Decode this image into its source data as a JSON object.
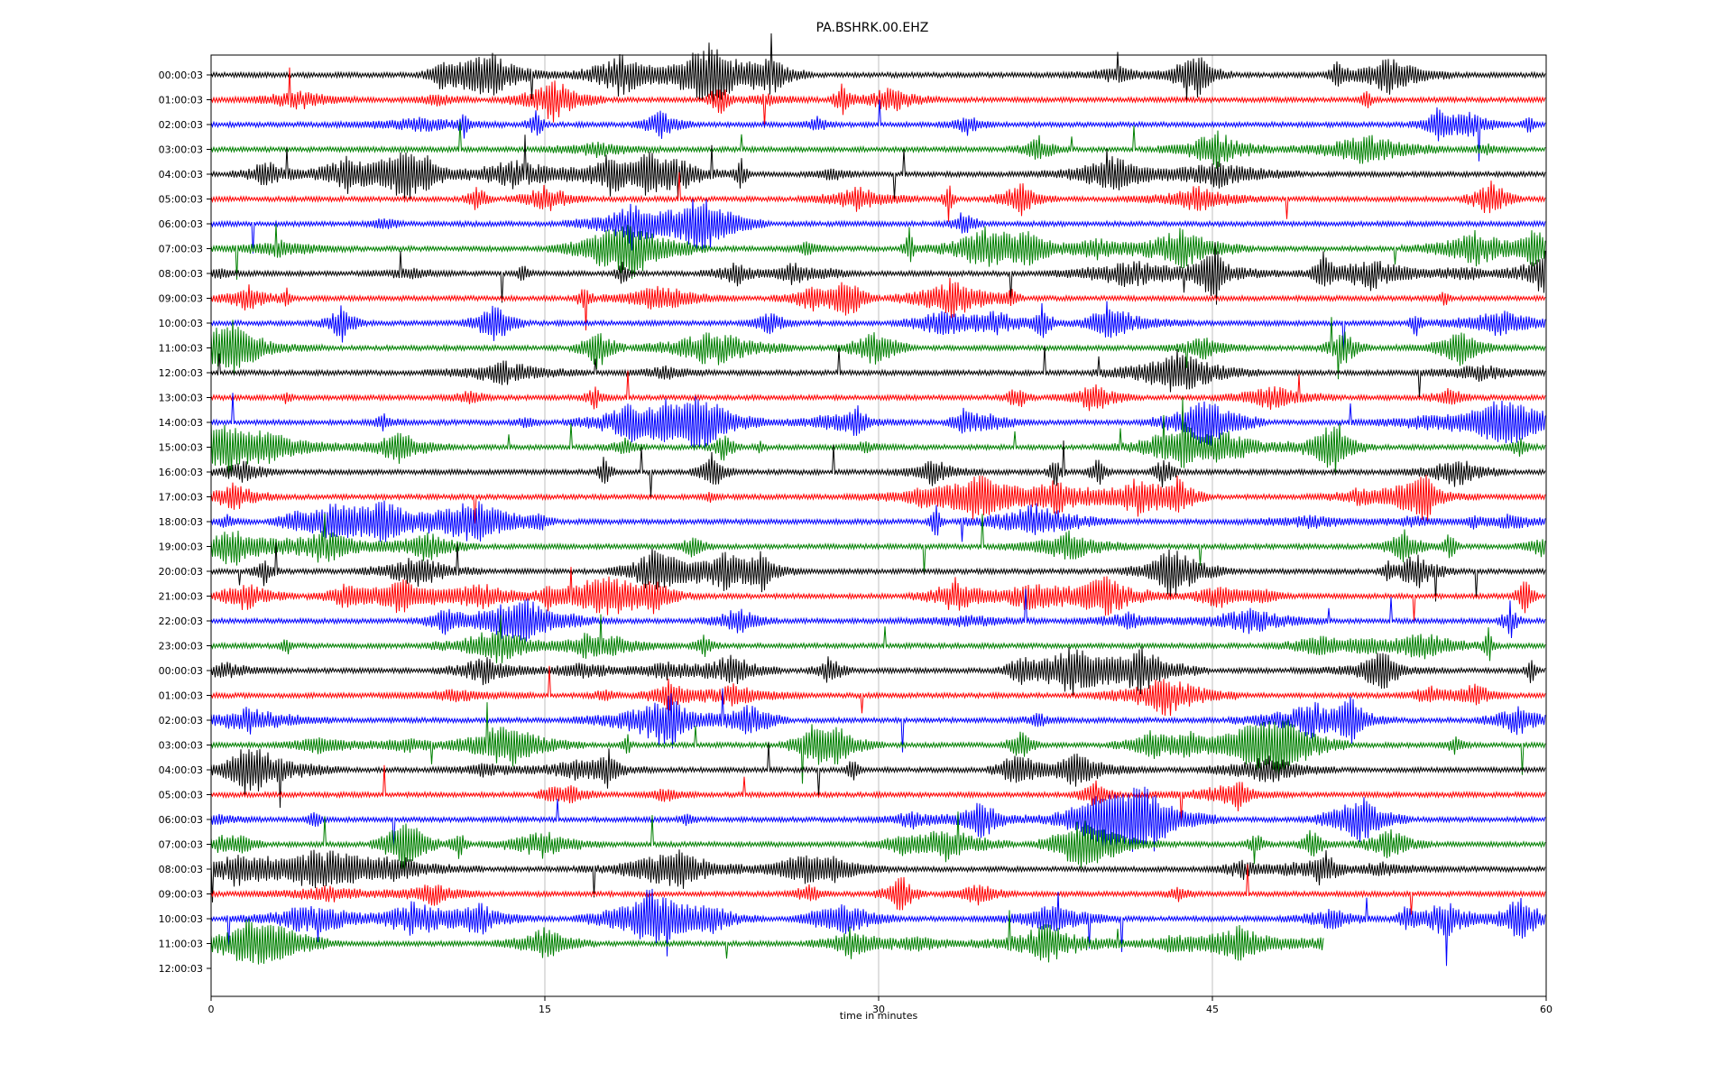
{
  "chart_data": {
    "type": "line",
    "title": "PA.BSHRK.00.EHZ",
    "xlabel": "time in minutes",
    "xlim": [
      0,
      60
    ],
    "x_ticks": [
      "0",
      "15",
      "30",
      "45",
      "60"
    ],
    "x_tick_values": [
      0,
      15,
      30,
      45,
      60
    ],
    "grid": "vertical only",
    "trace_colors": [
      "#000000",
      "#ff0000",
      "#0000ff",
      "#008000"
    ],
    "last_trace_end_minutes": 50,
    "row_labels": [
      "00:00:03",
      "01:00:03",
      "02:00:03",
      "03:00:03",
      "04:00:03",
      "05:00:03",
      "06:00:03",
      "07:00:03",
      "08:00:03",
      "09:00:03",
      "10:00:03",
      "11:00:03",
      "12:00:03",
      "13:00:03",
      "14:00:03",
      "15:00:03",
      "16:00:03",
      "17:00:03",
      "18:00:03",
      "19:00:03",
      "20:00:03",
      "21:00:03",
      "22:00:03",
      "23:00:03",
      "00:00:03",
      "01:00:03",
      "02:00:03",
      "03:00:03",
      "04:00:03",
      "05:00:03",
      "06:00:03",
      "07:00:03",
      "08:00:03",
      "09:00:03",
      "10:00:03",
      "11:00:03",
      "12:00:03"
    ]
  }
}
